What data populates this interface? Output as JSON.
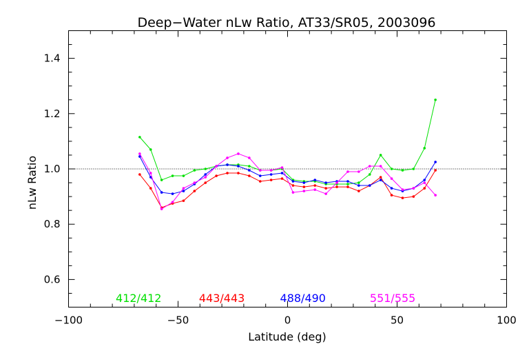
{
  "chart_data": {
    "type": "line",
    "title": "Deep−Water nLw Ratio, AT33/SR05, 2003096",
    "xlabel": "Latitude (deg)",
    "ylabel": "nLw Ratio",
    "xlim": [
      -100,
      100
    ],
    "ylim": [
      0.5,
      1.5
    ],
    "xticks": [
      -100,
      -50,
      0,
      50,
      100
    ],
    "xtick_labels": [
      "−100",
      "−50",
      "0",
      "50",
      "100"
    ],
    "yticks": [
      0.6,
      0.8,
      1.0,
      1.2,
      1.4
    ],
    "ytick_labels": [
      "0.6",
      "0.8",
      "1.0",
      "1.2",
      "1.4"
    ],
    "reference_line": 1.0,
    "grid": false,
    "legend_position": "bottom inside plot",
    "x": [
      -67.5,
      -62.5,
      -57.5,
      -52.5,
      -47.5,
      -42.5,
      -37.5,
      -32.5,
      -27.5,
      -22.5,
      -17.5,
      -12.5,
      -7.5,
      -2.5,
      2.5,
      7.5,
      12.5,
      17.5,
      22.5,
      27.5,
      32.5,
      37.5,
      42.5,
      47.5,
      52.5,
      57.5,
      62.5,
      67.5
    ],
    "series": [
      {
        "name": "412/412",
        "color": "#00e000",
        "values": [
          1.115,
          1.07,
          0.96,
          0.975,
          0.975,
          0.995,
          1.0,
          1.01,
          1.015,
          1.015,
          1.01,
          0.995,
          0.995,
          1.0,
          0.96,
          0.955,
          0.955,
          0.945,
          0.945,
          0.945,
          0.95,
          0.98,
          1.05,
          1.0,
          0.995,
          1.0,
          1.075,
          1.25
        ]
      },
      {
        "name": "443/443",
        "color": "#ff0000",
        "values": [
          0.98,
          0.93,
          0.86,
          0.875,
          0.885,
          0.92,
          0.95,
          0.975,
          0.985,
          0.985,
          0.975,
          0.955,
          0.96,
          0.965,
          0.94,
          0.935,
          0.94,
          0.93,
          0.935,
          0.935,
          0.92,
          0.94,
          0.97,
          0.905,
          0.895,
          0.9,
          0.93,
          0.995
        ]
      },
      {
        "name": "488/490",
        "color": "#0000ff",
        "values": [
          1.045,
          0.97,
          0.915,
          0.91,
          0.92,
          0.945,
          0.98,
          1.01,
          1.015,
          1.01,
          0.995,
          0.975,
          0.98,
          0.985,
          0.955,
          0.95,
          0.96,
          0.95,
          0.955,
          0.955,
          0.94,
          0.94,
          0.96,
          0.93,
          0.92,
          0.93,
          0.96,
          1.025
        ]
      },
      {
        "name": "551/555",
        "color": "#ff00ff",
        "values": [
          1.055,
          0.985,
          0.855,
          0.88,
          0.93,
          0.95,
          0.97,
          1.01,
          1.04,
          1.055,
          1.04,
          0.995,
          0.995,
          1.005,
          0.915,
          0.92,
          0.925,
          0.91,
          0.95,
          0.99,
          0.99,
          1.01,
          1.01,
          0.965,
          0.925,
          0.93,
          0.95,
          0.905
        ]
      }
    ]
  }
}
